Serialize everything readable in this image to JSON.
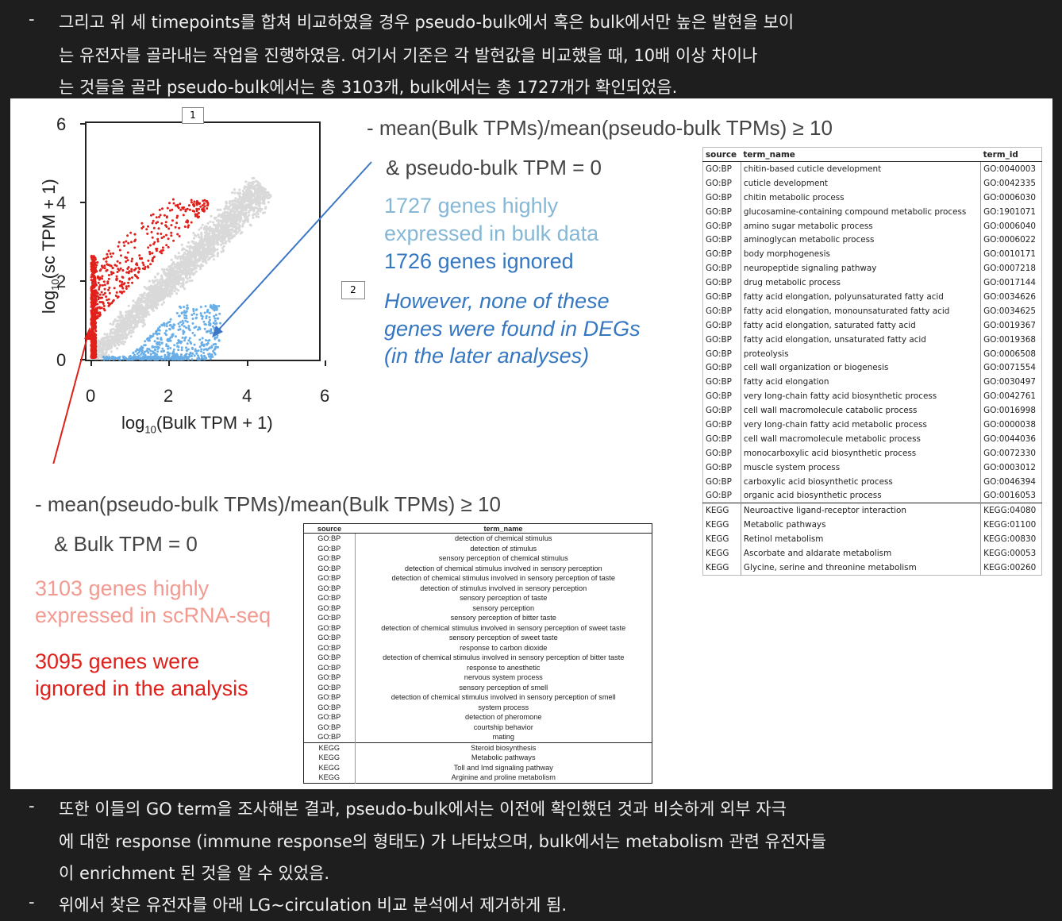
{
  "top_text": {
    "bullet": "-",
    "lines": [
      "그리고 위 세 timepoints를 합쳐 비교하였을 경우 pseudo-bulk에서 혹은 bulk에서만 높은 발현을 보이",
      "는 유전자를 골라내는 작업을 진행하였음. 여기서 기준은 각 발현값을 비교했을 때, 10배 이상 차이나",
      "는 것들을 골라 pseudo-bulk에서는 총 3103개, bulk에서는 총 1727개가 확인되었음."
    ]
  },
  "scatter": {
    "x_ticks": [
      "0",
      "2",
      "4",
      "6"
    ],
    "y_ticks": [
      "0",
      "2",
      "4",
      "6"
    ],
    "xlabel_prefix": "log",
    "xlabel_sub": "10",
    "xlabel_rest": "(Bulk TPM + 1)",
    "ylabel_prefix": "log",
    "ylabel_sub": "10",
    "ylabel_rest": "(sc TPM + 1)",
    "marker1": "1",
    "marker2": "2",
    "colors": {
      "grey": "#d9d9d9",
      "red": "#e0201b",
      "blue": "#6aaee8"
    }
  },
  "chart_data": {
    "type": "scatter",
    "xlabel": "log10(Bulk TPM + 1)",
    "ylabel": "log10(sc TPM + 1)",
    "xlim": [
      0,
      6
    ],
    "ylim": [
      0,
      6
    ],
    "series": [
      {
        "name": "",
        "color": "#d9d9d9",
        "description_points": [
          [
            0.2,
            0.3
          ],
          [
            1.0,
            1.0
          ],
          [
            2.0,
            2.0
          ],
          [
            3.0,
            3.2
          ],
          [
            4.2,
            4.5
          ]
        ]
      },
      {
        "name": "",
        "color": "#e0201b",
        "points": [
          [
            0,
            1.0
          ],
          [
            0.1,
            1.8
          ],
          [
            0.2,
            2.5
          ],
          [
            0.5,
            2.9
          ],
          [
            1.0,
            3.2
          ],
          [
            1.5,
            3.4
          ],
          [
            2.0,
            3.6
          ],
          [
            2.9,
            4.0
          ]
        ]
      },
      {
        "name": "",
        "color": "#6aaee8",
        "points": [
          [
            0.8,
            0
          ],
          [
            1.2,
            0.1
          ],
          [
            1.8,
            0.3
          ],
          [
            2.3,
            0.6
          ],
          [
            2.6,
            1.0
          ],
          [
            2.8,
            0.4
          ],
          [
            3.0,
            0.2
          ],
          [
            3.2,
            0.1
          ]
        ]
      }
    ]
  },
  "right_annot": {
    "line1": "- mean(Bulk TPMs)/mean(pseudo-bulk TPMs) ≥ 10",
    "line2": "& pseudo-bulk TPM = 0",
    "count1_a": "1727 genes highly",
    "count1_b": "expressed in bulk data",
    "count2": "1726 genes ignored",
    "note_a": "However, none of these",
    "note_b": "genes were found in DEGs",
    "note_c": "(in the later analyses)"
  },
  "left_annot": {
    "line1": "- mean(pseudo-bulk TPMs)/mean(Bulk TPMs) ≥ 10",
    "line2": "& Bulk TPM = 0",
    "count1_a": "3103 genes highly",
    "count1_b": "expressed in scRNA-seq",
    "count2_a": "3095 genes were",
    "count2_b": "ignored in the analysis"
  },
  "bulk_table": {
    "headers": [
      "source",
      "term_name",
      "term_id"
    ],
    "rows": [
      [
        "GO:BP",
        "chitin-based cuticle development",
        "GO:0040003"
      ],
      [
        "GO:BP",
        "cuticle development",
        "GO:0042335"
      ],
      [
        "GO:BP",
        "chitin metabolic process",
        "GO:0006030"
      ],
      [
        "GO:BP",
        "glucosamine-containing compound metabolic process",
        "GO:1901071"
      ],
      [
        "GO:BP",
        "amino sugar metabolic process",
        "GO:0006040"
      ],
      [
        "GO:BP",
        "aminoglycan metabolic process",
        "GO:0006022"
      ],
      [
        "GO:BP",
        "body morphogenesis",
        "GO:0010171"
      ],
      [
        "GO:BP",
        "neuropeptide signaling pathway",
        "GO:0007218"
      ],
      [
        "GO:BP",
        "drug metabolic process",
        "GO:0017144"
      ],
      [
        "GO:BP",
        "fatty acid elongation, polyunsaturated fatty acid",
        "GO:0034626"
      ],
      [
        "GO:BP",
        "fatty acid elongation, monounsaturated fatty acid",
        "GO:0034625"
      ],
      [
        "GO:BP",
        "fatty acid elongation, saturated fatty acid",
        "GO:0019367"
      ],
      [
        "GO:BP",
        "fatty acid elongation, unsaturated fatty acid",
        "GO:0019368"
      ],
      [
        "GO:BP",
        "proteolysis",
        "GO:0006508"
      ],
      [
        "GO:BP",
        "cell wall organization or biogenesis",
        "GO:0071554"
      ],
      [
        "GO:BP",
        "fatty acid elongation",
        "GO:0030497"
      ],
      [
        "GO:BP",
        "very long-chain fatty acid biosynthetic process",
        "GO:0042761"
      ],
      [
        "GO:BP",
        "cell wall macromolecule catabolic process",
        "GO:0016998"
      ],
      [
        "GO:BP",
        "very long-chain fatty acid metabolic process",
        "GO:0000038"
      ],
      [
        "GO:BP",
        "cell wall macromolecule metabolic process",
        "GO:0044036"
      ],
      [
        "GO:BP",
        "monocarboxylic acid biosynthetic process",
        "GO:0072330"
      ],
      [
        "GO:BP",
        "muscle system process",
        "GO:0003012"
      ],
      [
        "GO:BP",
        "carboxylic acid biosynthetic process",
        "GO:0046394"
      ],
      [
        "GO:BP",
        "organic acid biosynthetic process",
        "GO:0016053"
      ],
      [
        "KEGG",
        "Neuroactive ligand-receptor interaction",
        "KEGG:04080"
      ],
      [
        "KEGG",
        "Metabolic pathways",
        "KEGG:01100"
      ],
      [
        "KEGG",
        "Retinol metabolism",
        "KEGG:00830"
      ],
      [
        "KEGG",
        "Ascorbate and aldarate metabolism",
        "KEGG:00053"
      ],
      [
        "KEGG",
        "Glycine, serine and threonine metabolism",
        "KEGG:00260"
      ]
    ]
  },
  "sc_table": {
    "headers": [
      "source",
      "term_name"
    ],
    "rows": [
      [
        "GO:BP",
        "detection of chemical stimulus"
      ],
      [
        "GO:BP",
        "detection of stimulus"
      ],
      [
        "GO:BP",
        "sensory perception of chemical stimulus"
      ],
      [
        "GO:BP",
        "detection of chemical stimulus involved in sensory perception"
      ],
      [
        "GO:BP",
        "detection of chemical stimulus involved in sensory perception of taste"
      ],
      [
        "GO:BP",
        "detection of stimulus involved in sensory perception"
      ],
      [
        "GO:BP",
        "sensory perception of taste"
      ],
      [
        "GO:BP",
        "sensory perception"
      ],
      [
        "GO:BP",
        "sensory perception of bitter taste"
      ],
      [
        "GO:BP",
        "detection of chemical stimulus involved in sensory perception of sweet taste"
      ],
      [
        "GO:BP",
        "sensory perception of sweet taste"
      ],
      [
        "GO:BP",
        "response to carbon dioxide"
      ],
      [
        "GO:BP",
        "detection of chemical stimulus involved in sensory perception of bitter taste"
      ],
      [
        "GO:BP",
        "response to anesthetic"
      ],
      [
        "GO:BP",
        "nervous system process"
      ],
      [
        "GO:BP",
        "sensory perception of smell"
      ],
      [
        "GO:BP",
        "detection of chemical stimulus involved in sensory perception of smell"
      ],
      [
        "GO:BP",
        "system process"
      ],
      [
        "GO:BP",
        "detection of pheromone"
      ],
      [
        "GO:BP",
        "courtship behavior"
      ],
      [
        "GO:BP",
        "mating"
      ],
      [
        "KEGG",
        "Steroid biosynthesis"
      ],
      [
        "KEGG",
        "Metabolic pathways"
      ],
      [
        "KEGG",
        "Toll and Imd signaling pathway"
      ],
      [
        "KEGG",
        "Arginine and proline metabolism"
      ]
    ]
  },
  "bottom_text": {
    "bullet": "-",
    "lines": [
      "또한 이들의 GO term을 조사해본 결과, pseudo-bulk에서는 이전에 확인했던 것과 비슷하게 외부 자극",
      "에 대한 response (immune response의 형태도) 가 나타났으며, bulk에서는 metabolism 관련 유전자들",
      "이 enrichment 된 것을 알 수 있었음."
    ],
    "last_line": "위에서 찾은 유전자를 아래 LG~circulation 비교 분석에서 제거하게 됨."
  }
}
